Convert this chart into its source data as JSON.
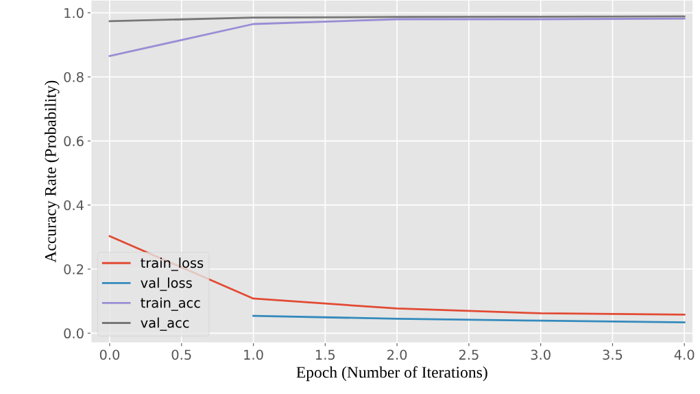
{
  "chart_data": {
    "type": "line",
    "xlabel": "Epoch (Number of Iterations)",
    "ylabel": "Accuracy Rate (Probability)",
    "x": [
      0,
      1,
      2,
      3,
      4
    ],
    "series": [
      {
        "name": "train_loss",
        "color": "#e24a33",
        "values": [
          0.303,
          0.108,
          0.077,
          0.062,
          0.058
        ]
      },
      {
        "name": "val_loss",
        "color": "#348abd",
        "values": [
          null,
          0.054,
          0.045,
          0.039,
          0.034
        ]
      },
      {
        "name": "train_acc",
        "color": "#988ed5",
        "values": [
          0.865,
          0.965,
          0.98,
          0.98,
          0.982
        ]
      },
      {
        "name": "val_acc",
        "color": "#777777",
        "values": [
          0.974,
          0.985,
          0.987,
          0.988,
          0.989
        ]
      }
    ],
    "xlim": [
      -0.13,
      4.06
    ],
    "ylim": [
      -0.03,
      1.04
    ],
    "xticks": [
      {
        "value": 0,
        "label": "0.0"
      },
      {
        "value": 0.5,
        "label": "0.5"
      },
      {
        "value": 1,
        "label": "1.0"
      },
      {
        "value": 1.5,
        "label": "1.5"
      },
      {
        "value": 2,
        "label": "2.0"
      },
      {
        "value": 2.5,
        "label": "2.5"
      },
      {
        "value": 3,
        "label": "3.0"
      },
      {
        "value": 3.5,
        "label": "3.5"
      },
      {
        "value": 4,
        "label": "4.0"
      }
    ],
    "yticks": [
      {
        "value": 0,
        "label": "0.0"
      },
      {
        "value": 0.2,
        "label": "0.2"
      },
      {
        "value": 0.4,
        "label": "0.4"
      },
      {
        "value": 0.6,
        "label": "0.6"
      },
      {
        "value": 0.8,
        "label": "0.8"
      },
      {
        "value": 1,
        "label": "1.0"
      }
    ],
    "grid": true,
    "legend": "lower left",
    "marker": "none",
    "line_style": "solid"
  }
}
